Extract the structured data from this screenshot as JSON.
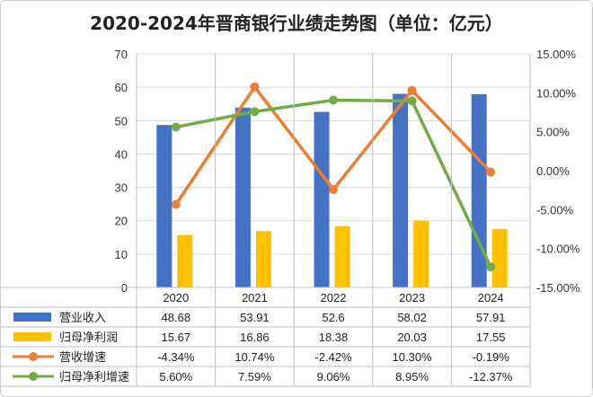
{
  "chart_data": {
    "type": "bar",
    "title": "2020-2024年晋商银行业绩走势图（单位：亿元）",
    "categories": [
      "2020",
      "2021",
      "2022",
      "2023",
      "2024"
    ],
    "series": [
      {
        "name": "营业收入",
        "kind": "bar",
        "axis": "left",
        "color": "#4472C4",
        "values": [
          48.68,
          53.91,
          52.6,
          58.02,
          57.91
        ],
        "labels": [
          "48.68",
          "53.91",
          "52.6",
          "58.02",
          "57.91"
        ]
      },
      {
        "name": "归母净利润",
        "kind": "bar",
        "axis": "left",
        "color": "#FFC000",
        "values": [
          15.67,
          16.86,
          18.38,
          20.03,
          17.55
        ],
        "labels": [
          "15.67",
          "16.86",
          "18.38",
          "20.03",
          "17.55"
        ]
      },
      {
        "name": "营收增速",
        "kind": "line",
        "axis": "right",
        "color": "#ED7D31",
        "values": [
          -4.34,
          10.74,
          -2.42,
          10.3,
          -0.19
        ],
        "labels": [
          "-4.34%",
          "10.74%",
          "-2.42%",
          "10.30%",
          "-0.19%"
        ]
      },
      {
        "name": "归母净利增速",
        "kind": "line",
        "axis": "right",
        "color": "#70AD47",
        "values": [
          5.6,
          7.59,
          9.06,
          8.95,
          -12.37
        ],
        "labels": [
          "5.60%",
          "7.59%",
          "9.06%",
          "8.95%",
          "-12.37%"
        ]
      }
    ],
    "y_left": {
      "min": 0,
      "max": 70,
      "ticks": [
        "0",
        "10",
        "20",
        "30",
        "40",
        "50",
        "60",
        "70"
      ]
    },
    "y_right": {
      "min": -15,
      "max": 15,
      "ticks": [
        "-15.00%",
        "-10.00%",
        "-5.00%",
        "0.00%",
        "5.00%",
        "10.00%",
        "15.00%"
      ]
    },
    "grid": true,
    "legend": "data-table"
  }
}
